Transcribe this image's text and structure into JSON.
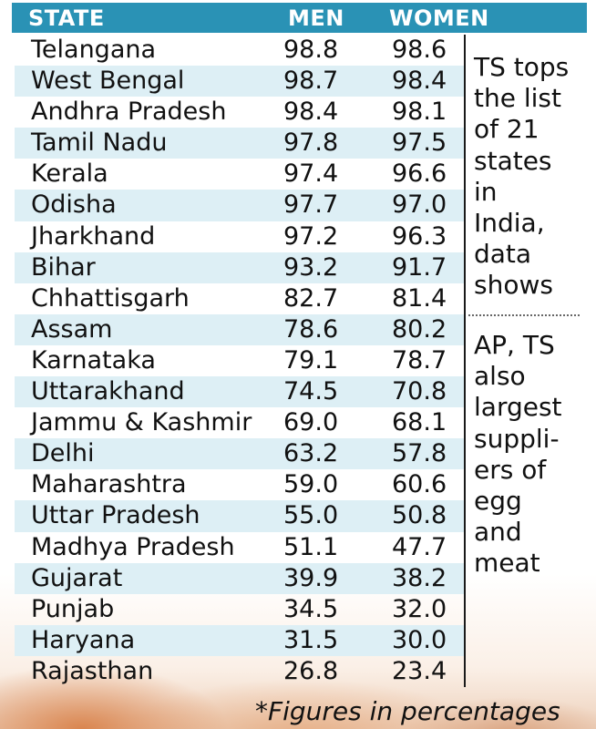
{
  "header": {
    "state": "STATE",
    "men": "MEN",
    "women": "WOMEN"
  },
  "rows": [
    {
      "state": "Telangana",
      "men": "98.8",
      "women": "98.6"
    },
    {
      "state": "West Bengal",
      "men": "98.7",
      "women": "98.4"
    },
    {
      "state": "Andhra Pradesh",
      "men": "98.4",
      "women": "98.1"
    },
    {
      "state": "Tamil Nadu",
      "men": "97.8",
      "women": "97.5"
    },
    {
      "state": "Kerala",
      "men": "97.4",
      "women": "96.6"
    },
    {
      "state": "Odisha",
      "men": "97.7",
      "women": "97.0"
    },
    {
      "state": "Jharkhand",
      "men": "97.2",
      "women": "96.3"
    },
    {
      "state": "Bihar",
      "men": "93.2",
      "women": "91.7"
    },
    {
      "state": "Chhattisgarh",
      "men": "82.7",
      "women": "81.4"
    },
    {
      "state": "Assam",
      "men": "78.6",
      "women": "80.2"
    },
    {
      "state": "Karnataka",
      "men": "79.1",
      "women": "78.7"
    },
    {
      "state": "Uttarakhand",
      "men": "74.5",
      "women": "70.8"
    },
    {
      "state": "Jammu & Kashmir",
      "men": "69.0",
      "women": "68.1"
    },
    {
      "state": "Delhi",
      "men": "63.2",
      "women": "57.8"
    },
    {
      "state": "Maharashtra",
      "men": "59.0",
      "women": "60.6"
    },
    {
      "state": "Uttar Pradesh",
      "men": "55.0",
      "women": "50.8"
    },
    {
      "state": "Madhya Pradesh",
      "men": "51.1",
      "women": "47.7"
    },
    {
      "state": "Gujarat",
      "men": "39.9",
      "women": "38.2"
    },
    {
      "state": "Punjab",
      "men": "34.5",
      "women": "32.0"
    },
    {
      "state": "Haryana",
      "men": "31.5",
      "women": "30.0"
    },
    {
      "state": "Rajasthan",
      "men": "26.8",
      "women": "23.4"
    }
  ],
  "sidebar": {
    "note1_lines": [
      "TS tops",
      "the list",
      "of 21",
      "states",
      "in",
      "India,",
      "data",
      "shows"
    ],
    "note2_lines": [
      "AP, TS",
      "also",
      "largest",
      "suppli-",
      "ers of",
      "egg",
      "and",
      "meat"
    ]
  },
  "footnote": "*Figures in percentages",
  "colors": {
    "header_bg": "#2a92b5",
    "row_shade": "#ddeff5"
  }
}
